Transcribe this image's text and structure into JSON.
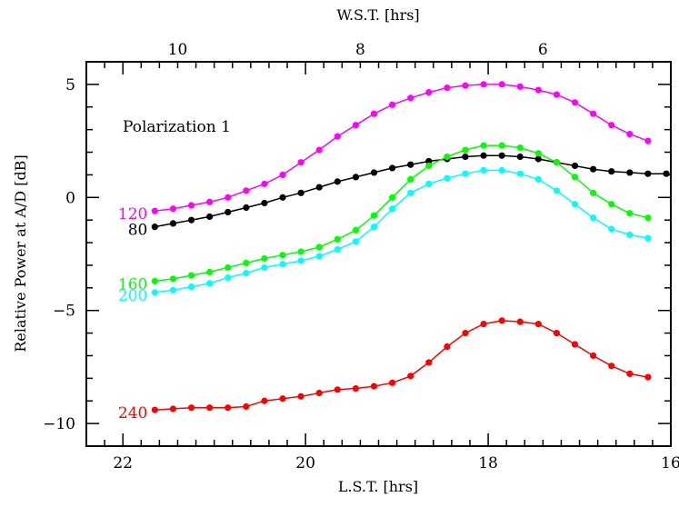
{
  "chart_data": {
    "type": "line",
    "title": "",
    "xlabel": "L.S.T. [hrs]",
    "x2label": "W.S.T. [hrs]",
    "ylabel": "Relative Power at A/D  [dB]",
    "annotation": "Polarization 1",
    "xlim": [
      22.4,
      16.0
    ],
    "ylim": [
      -11.0,
      6.0
    ],
    "x_ticks": [
      22,
      20,
      18,
      16
    ],
    "x_tick_labels": [
      "22",
      "20",
      "18",
      "16"
    ],
    "y_ticks": [
      5,
      0,
      -5,
      -10
    ],
    "y_tick_labels": [
      "5",
      "0",
      "−5",
      "−10"
    ],
    "x2_ticks": [
      21.4,
      19.4,
      17.4
    ],
    "x2_tick_labels": [
      "10",
      "8",
      "6"
    ],
    "grid": false,
    "series": [
      {
        "name": "120",
        "color": "#ff00ff",
        "x": [
          21.65,
          21.45,
          21.25,
          21.05,
          20.85,
          20.65,
          20.45,
          20.25,
          20.05,
          19.85,
          19.65,
          19.45,
          19.25,
          19.05,
          18.85,
          18.65,
          18.45,
          18.25,
          18.05,
          17.85,
          17.65,
          17.45,
          17.25,
          17.05,
          16.85,
          16.65,
          16.45,
          16.25
        ],
        "y": [
          -0.6,
          -0.5,
          -0.35,
          -0.2,
          0.0,
          0.3,
          0.6,
          1.0,
          1.55,
          2.1,
          2.7,
          3.2,
          3.7,
          4.1,
          4.4,
          4.65,
          4.85,
          4.95,
          5.0,
          5.0,
          4.9,
          4.75,
          4.55,
          4.2,
          3.7,
          3.2,
          2.8,
          2.5
        ]
      },
      {
        "name": "80",
        "color": "#000000",
        "x": [
          21.65,
          21.45,
          21.25,
          21.05,
          20.85,
          20.65,
          20.45,
          20.25,
          20.05,
          19.85,
          19.65,
          19.45,
          19.25,
          19.05,
          18.85,
          18.65,
          18.45,
          18.25,
          18.05,
          17.85,
          17.65,
          17.45,
          17.25,
          17.05,
          16.85,
          16.65,
          16.45,
          16.25,
          16.05
        ],
        "y": [
          -1.3,
          -1.15,
          -1.0,
          -0.85,
          -0.65,
          -0.45,
          -0.25,
          0.0,
          0.2,
          0.45,
          0.7,
          0.9,
          1.1,
          1.3,
          1.45,
          1.6,
          1.7,
          1.8,
          1.85,
          1.85,
          1.8,
          1.7,
          1.55,
          1.4,
          1.25,
          1.15,
          1.1,
          1.05,
          1.05
        ]
      },
      {
        "name": "160",
        "color": "#00ff00",
        "x": [
          21.65,
          21.45,
          21.25,
          21.05,
          20.85,
          20.65,
          20.45,
          20.25,
          20.05,
          19.85,
          19.65,
          19.45,
          19.25,
          19.05,
          18.85,
          18.65,
          18.45,
          18.25,
          18.05,
          17.85,
          17.65,
          17.45,
          17.25,
          17.05,
          16.85,
          16.65,
          16.45,
          16.25
        ],
        "y": [
          -3.7,
          -3.6,
          -3.45,
          -3.3,
          -3.1,
          -2.9,
          -2.7,
          -2.55,
          -2.4,
          -2.2,
          -1.85,
          -1.45,
          -0.8,
          0.0,
          0.8,
          1.4,
          1.8,
          2.1,
          2.3,
          2.3,
          2.2,
          1.95,
          1.55,
          0.9,
          0.2,
          -0.3,
          -0.7,
          -0.9
        ]
      },
      {
        "name": "200",
        "color": "#00ffff",
        "x": [
          21.65,
          21.45,
          21.25,
          21.05,
          20.85,
          20.65,
          20.45,
          20.25,
          20.05,
          19.85,
          19.65,
          19.45,
          19.25,
          19.05,
          18.85,
          18.65,
          18.45,
          18.25,
          18.05,
          17.85,
          17.65,
          17.45,
          17.25,
          17.05,
          16.85,
          16.65,
          16.45,
          16.25
        ],
        "y": [
          -4.2,
          -4.1,
          -3.95,
          -3.8,
          -3.55,
          -3.35,
          -3.1,
          -2.95,
          -2.8,
          -2.6,
          -2.3,
          -1.95,
          -1.3,
          -0.5,
          0.2,
          0.6,
          0.85,
          1.05,
          1.2,
          1.2,
          1.05,
          0.8,
          0.3,
          -0.3,
          -0.9,
          -1.4,
          -1.65,
          -1.8
        ]
      },
      {
        "name": "240",
        "color": "#ff0000",
        "x": [
          21.65,
          21.45,
          21.25,
          21.05,
          20.85,
          20.65,
          20.45,
          20.25,
          20.05,
          19.85,
          19.65,
          19.45,
          19.25,
          19.05,
          18.85,
          18.65,
          18.45,
          18.25,
          18.05,
          17.85,
          17.65,
          17.45,
          17.25,
          17.05,
          16.85,
          16.65,
          16.45,
          16.25
        ],
        "y": [
          -9.4,
          -9.35,
          -9.3,
          -9.3,
          -9.3,
          -9.25,
          -9.0,
          -8.9,
          -8.8,
          -8.65,
          -8.5,
          -8.45,
          -8.35,
          -8.2,
          -7.9,
          -7.3,
          -6.6,
          -6.0,
          -5.6,
          -5.45,
          -5.5,
          -5.6,
          -6.0,
          -6.5,
          -7.0,
          -7.45,
          -7.8,
          -7.95
        ]
      }
    ]
  }
}
